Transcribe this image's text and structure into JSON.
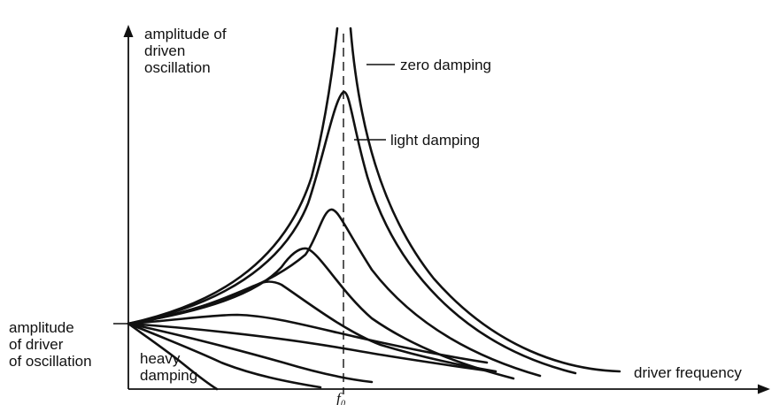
{
  "labels": {
    "y_axis": [
      "amplitude of",
      "driven",
      "oscillation"
    ],
    "x_axis": "driver frequency",
    "driver_amplitude": [
      "amplitude",
      "of driver",
      "of oscillation"
    ],
    "zero_damping": "zero damping",
    "light_damping": "light damping",
    "heavy_damping": [
      "heavy",
      "damping"
    ],
    "resonant_frequency": "f₀"
  }
}
